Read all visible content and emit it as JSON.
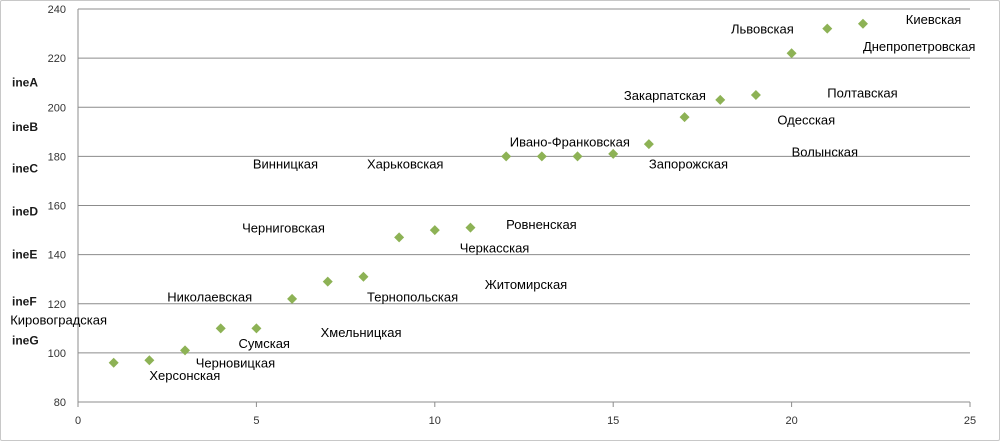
{
  "chart_data": {
    "type": "scatter",
    "marker": "diamond",
    "marker_color": "#8DB255",
    "grid": true,
    "xlim": [
      0,
      25
    ],
    "ylim": [
      80,
      240
    ],
    "x_ticks": [
      0,
      5,
      10,
      15,
      20,
      25
    ],
    "y_ticks": [
      80,
      100,
      120,
      140,
      160,
      180,
      200,
      220,
      240
    ],
    "side_labels": [
      {
        "text": "ineA",
        "y": 210
      },
      {
        "text": "ineB",
        "y": 192
      },
      {
        "text": "ineC",
        "y": 175
      },
      {
        "text": "ineD",
        "y": 157.5
      },
      {
        "text": "ineE",
        "y": 140
      },
      {
        "text": "ineF",
        "y": 121
      },
      {
        "text": "ineG",
        "y": 105
      }
    ],
    "points": [
      {
        "x": 1,
        "y": 96,
        "label": "Кировоградская",
        "lx": -1.9,
        "ly": 113.5
      },
      {
        "x": 2,
        "y": 97,
        "label": "Херсонская",
        "lx": 2,
        "ly": 91
      },
      {
        "x": 3,
        "y": 101,
        "label": "Черновицкая",
        "lx": 3.3,
        "ly": 96
      },
      {
        "x": 4,
        "y": 110,
        "label": "Сумская",
        "lx": 4.5,
        "ly": 104
      },
      {
        "x": 5,
        "y": 110,
        "label": "Николаевская",
        "lx": 2.5,
        "ly": 123
      },
      {
        "x": 6,
        "y": 122,
        "label": "Хмельницкая",
        "lx": 6.8,
        "ly": 108.5
      },
      {
        "x": 7,
        "y": 129,
        "label": "Черниговская",
        "lx": 4.6,
        "ly": 151
      },
      {
        "x": 8,
        "y": 131,
        "label": "Тернопольская",
        "lx": 8.1,
        "ly": 123
      },
      {
        "x": 9,
        "y": 147,
        "label": "Житомирская",
        "lx": 11.4,
        "ly": 128
      },
      {
        "x": 10,
        "y": 150,
        "label": "Черкасская",
        "lx": 10.7,
        "ly": 143
      },
      {
        "x": 11,
        "y": 151,
        "label": "Ровненская",
        "lx": 12,
        "ly": 152.5
      },
      {
        "x": 12,
        "y": 180,
        "label": "Винницкая",
        "lx": 4.9,
        "ly": 177
      },
      {
        "x": 13,
        "y": 180,
        "label": "Харьковская",
        "lx": 8.1,
        "ly": 177
      },
      {
        "x": 14,
        "y": 180,
        "label": "Ивано-Франковская",
        "lx": 12.1,
        "ly": 186
      },
      {
        "x": 15,
        "y": 181,
        "label": "Запорожская",
        "lx": 16,
        "ly": 177
      },
      {
        "x": 16,
        "y": 185,
        "label": "Волынская",
        "lx": 20,
        "ly": 182
      },
      {
        "x": 17,
        "y": 196,
        "label": "Закарпатская",
        "lx": 15.3,
        "ly": 205
      },
      {
        "x": 18,
        "y": 203,
        "label": "Одесская",
        "lx": 19.6,
        "ly": 195
      },
      {
        "x": 19,
        "y": 205,
        "label": "Полтавская",
        "lx": 21,
        "ly": 206
      },
      {
        "x": 20,
        "y": 222,
        "label": "Днепропетровская",
        "lx": 22,
        "ly": 225
      },
      {
        "x": 21,
        "y": 232,
        "label": "Львовская",
        "lx": 18.3,
        "ly": 232
      },
      {
        "x": 22,
        "y": 234,
        "label": "Киевская",
        "lx": 23.2,
        "ly": 236
      }
    ]
  }
}
